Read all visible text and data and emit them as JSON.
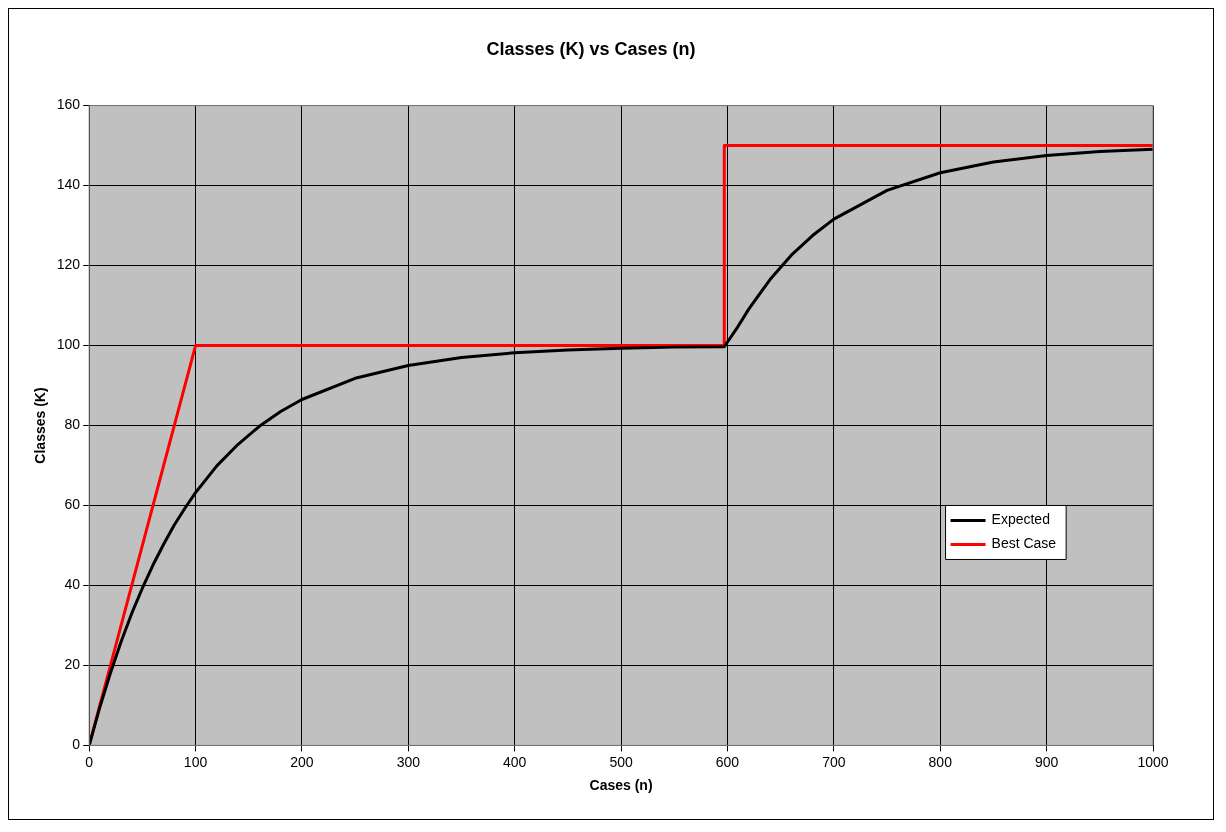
{
  "chart_data": {
    "type": "line",
    "title": "Classes (K) vs Cases (n)",
    "xlabel": "Cases (n)",
    "ylabel": "Classes (K)",
    "xlim": [
      0,
      1000
    ],
    "xticks": [
      0,
      100,
      200,
      300,
      400,
      500,
      600,
      700,
      800,
      900,
      1000
    ],
    "ylim": [
      0,
      160
    ],
    "yticks": [
      0,
      20,
      40,
      60,
      80,
      100,
      120,
      140,
      160
    ],
    "grid": true,
    "legend": "right",
    "marker": "none",
    "line_style": "solid",
    "series": [
      {
        "name": "Expected",
        "color": "#000000",
        "x": [
          0,
          10,
          20,
          30,
          40,
          50,
          60,
          70,
          80,
          90,
          100,
          120,
          140,
          160,
          180,
          200,
          250,
          300,
          350,
          400,
          450,
          500,
          550,
          597,
          610,
          620,
          640,
          660,
          680,
          700,
          750,
          800,
          850,
          900,
          950,
          1000
        ],
        "values": [
          0,
          9.5,
          18.1,
          25.9,
          33,
          39.3,
          45.1,
          50.3,
          55.1,
          59.3,
          63.2,
          69.9,
          75.3,
          79.8,
          83.5,
          86.5,
          91.8,
          95,
          97,
          98.2,
          98.9,
          99.3,
          99.6,
          99.7,
          104.8,
          109.1,
          116.5,
          122.6,
          127.5,
          131.6,
          138.8,
          143.2,
          145.9,
          147.5,
          148.5,
          149.1
        ]
      },
      {
        "name": "Best Case",
        "color": "#ff0000",
        "x": [
          0,
          100,
          597,
          597,
          1000
        ],
        "values": [
          0,
          100,
          100,
          150,
          150
        ]
      }
    ]
  }
}
